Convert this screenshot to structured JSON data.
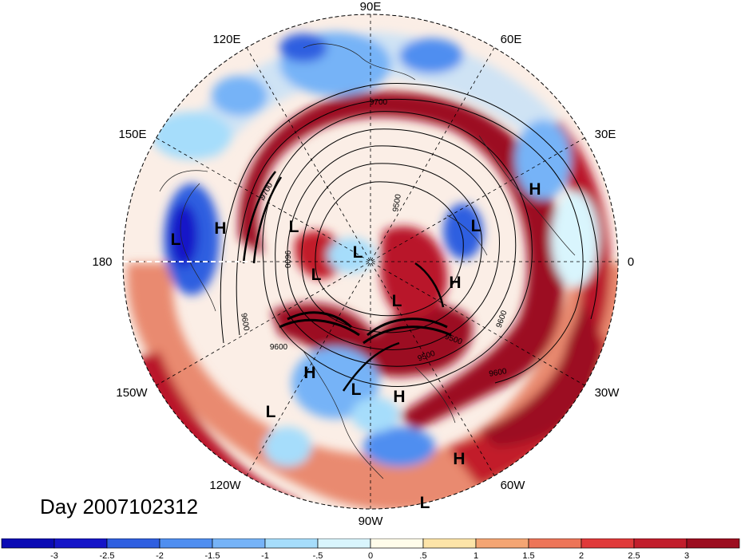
{
  "title": "Day 2007102312",
  "longitude_labels": [
    "90E",
    "60E",
    "30E",
    "0",
    "30W",
    "60W",
    "90W",
    "120W",
    "150W",
    "180",
    "150E",
    "120E"
  ],
  "pressure_systems": [
    {
      "type": "H"
    },
    {
      "type": "L"
    },
    {
      "type": "H"
    },
    {
      "type": "L"
    },
    {
      "type": "L"
    },
    {
      "type": "L"
    },
    {
      "type": "L"
    },
    {
      "type": "L"
    },
    {
      "type": "H"
    },
    {
      "type": "L"
    },
    {
      "type": "H"
    },
    {
      "type": "H"
    },
    {
      "type": "L"
    },
    {
      "type": "H"
    },
    {
      "type": "L"
    }
  ],
  "contour_labels": [
    "9700",
    "9700",
    "9500",
    "9600",
    "9500",
    "9600",
    "9600",
    "9600",
    "9600",
    "9500"
  ],
  "colorbar": {
    "ticks": [
      "-3",
      "-2.5",
      "-2",
      "-1.5",
      "-1",
      "-.5",
      "0",
      ".5",
      "1",
      "1.5",
      "2",
      "2.5",
      "3"
    ],
    "colors": [
      "#1515c8",
      "#2f5fe0",
      "#4f8ef0",
      "#76b3f7",
      "#a6ddfb",
      "#d9f5fd",
      "#fffcea",
      "#fde4a8",
      "#f4a573",
      "#ed7558",
      "#e03a3a",
      "#c21e2c",
      "#9c0e20"
    ]
  }
}
